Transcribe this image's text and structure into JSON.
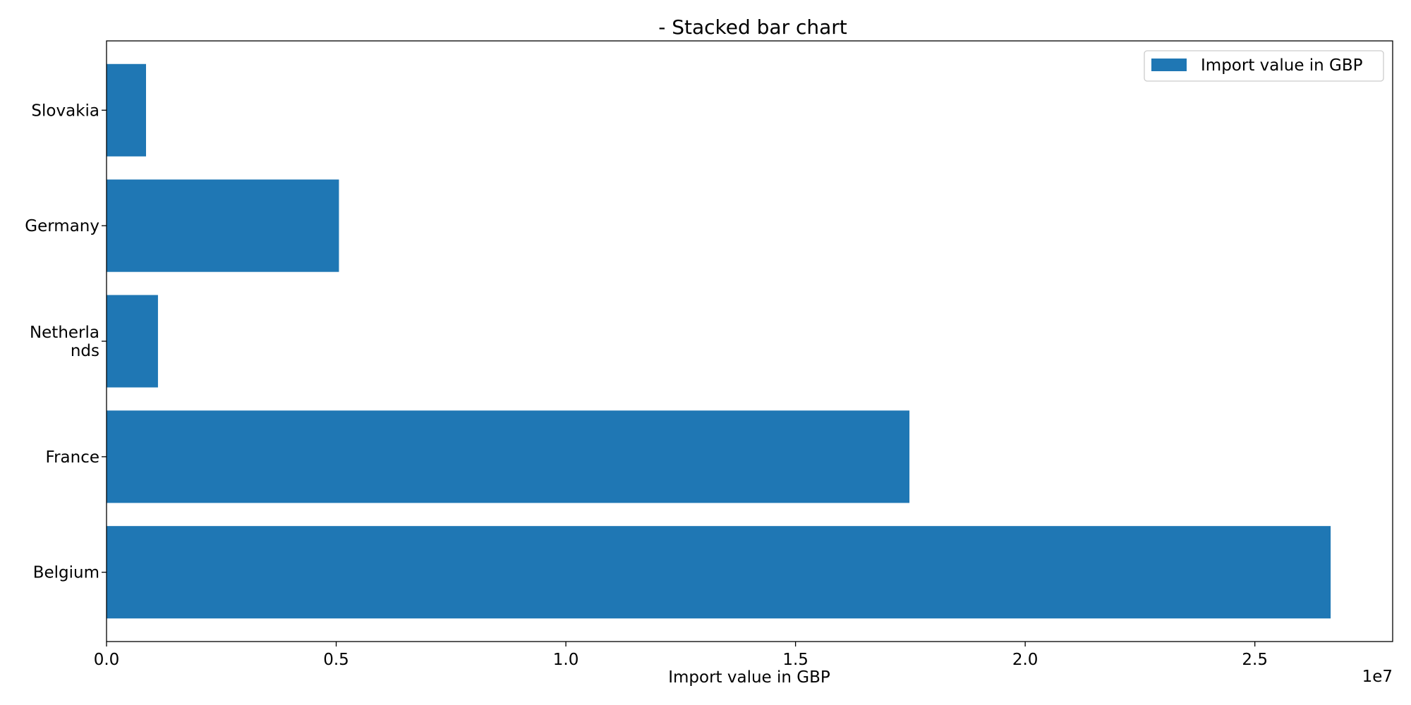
{
  "chart_data": {
    "type": "bar",
    "orientation": "horizontal",
    "title": "- Stacked bar chart",
    "xlabel": "Import value in GBP",
    "ylabel": "",
    "x_offset_label": "1e7",
    "xlim": [
      0,
      2.8
    ],
    "x_ticks": [
      "0.0",
      "0.5",
      "1.0",
      "1.5",
      "2.0",
      "2.5"
    ],
    "categories": [
      [
        "Belgium"
      ],
      [
        "France"
      ],
      [
        "Netherla",
        "nds"
      ],
      [
        "Germany"
      ],
      [
        "Slovakia"
      ]
    ],
    "series": [
      {
        "name": "Import value in GBP",
        "color": "#1f77b4",
        "values": [
          26650000,
          17480000,
          1120000,
          5060000,
          860000
        ]
      }
    ],
    "legend_position": "top-right",
    "grid": false
  }
}
